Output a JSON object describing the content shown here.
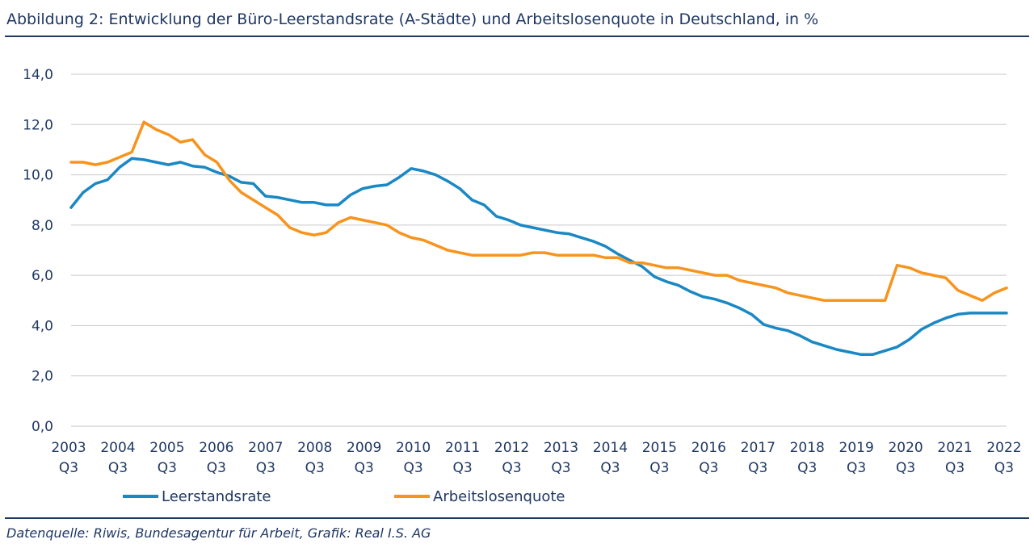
{
  "header": {
    "title": "Abbildung 2: Entwicklung der Büro-Leerstandsrate (A-Städte) und Arbeitslosenquote in Deutschland, in %"
  },
  "footer": {
    "source": "Datenquelle: Riwis, Bundesagentur für Arbeit, Grafik: Real I.S. AG"
  },
  "colors": {
    "leerstand": "#1a88c4",
    "arbeitslos": "#f7941d",
    "grid": "#c9c9c9",
    "text": "#1f3864"
  },
  "chart_data": {
    "type": "line",
    "title": "",
    "xlabel": "",
    "ylabel": "",
    "ylim": [
      0,
      14
    ],
    "yticks": [
      "0,0",
      "2,0",
      "4,0",
      "6,0",
      "8,0",
      "10,0",
      "12,0",
      "14,0"
    ],
    "grid": true,
    "legend_position": "bottom-left",
    "x_start": "2003 Q3",
    "x_end": "2022 Q3",
    "x_ticks": [
      {
        "year": "2003",
        "quarter": "Q3"
      },
      {
        "year": "2004",
        "quarter": "Q3"
      },
      {
        "year": "2005",
        "quarter": "Q3"
      },
      {
        "year": "2006",
        "quarter": "Q3"
      },
      {
        "year": "2007",
        "quarter": "Q3"
      },
      {
        "year": "2008",
        "quarter": "Q3"
      },
      {
        "year": "2009",
        "quarter": "Q3"
      },
      {
        "year": "2010",
        "quarter": "Q3"
      },
      {
        "year": "2011",
        "quarter": "Q3"
      },
      {
        "year": "2012",
        "quarter": "Q3"
      },
      {
        "year": "2013",
        "quarter": "Q3"
      },
      {
        "year": "2014",
        "quarter": "Q3"
      },
      {
        "year": "2015",
        "quarter": "Q3"
      },
      {
        "year": "2016",
        "quarter": "Q3"
      },
      {
        "year": "2017",
        "quarter": "Q3"
      },
      {
        "year": "2018",
        "quarter": "Q3"
      },
      {
        "year": "2019",
        "quarter": "Q3"
      },
      {
        "year": "2020",
        "quarter": "Q3"
      },
      {
        "year": "2021",
        "quarter": "Q3"
      },
      {
        "year": "2022",
        "quarter": "Q3"
      }
    ],
    "series": [
      {
        "name": "Leerstandsrate",
        "key": "leerstand",
        "values": [
          8.7,
          9.3,
          9.65,
          9.8,
          10.3,
          10.65,
          10.6,
          10.5,
          10.4,
          10.5,
          10.35,
          10.3,
          10.1,
          9.95,
          9.7,
          9.65,
          9.15,
          9.1,
          9.0,
          8.9,
          8.9,
          8.8,
          8.8,
          9.2,
          9.45,
          9.55,
          9.6,
          9.9,
          10.25,
          10.15,
          10.0,
          9.75,
          9.45,
          9.0,
          8.8,
          8.35,
          8.2,
          8.0,
          7.9,
          7.8,
          7.7,
          7.65,
          7.5,
          7.35,
          7.15,
          6.85,
          6.6,
          6.35,
          5.95,
          5.75,
          5.6,
          5.35,
          5.15,
          5.05,
          4.9,
          4.7,
          4.45,
          4.05,
          3.9,
          3.8,
          3.6,
          3.35,
          3.2,
          3.05,
          2.95,
          2.85,
          2.85,
          3.0,
          3.15,
          3.45,
          3.85,
          4.1,
          4.3,
          4.45,
          4.5,
          4.5,
          4.5,
          4.5
        ]
      },
      {
        "name": "Arbeitslosenquote",
        "key": "arbeitslos",
        "values": [
          10.5,
          10.5,
          10.4,
          10.5,
          10.7,
          10.9,
          12.1,
          11.8,
          11.6,
          11.3,
          11.4,
          10.8,
          10.5,
          9.8,
          9.3,
          9.0,
          8.7,
          8.4,
          7.9,
          7.7,
          7.6,
          7.7,
          8.1,
          8.3,
          8.2,
          8.1,
          8.0,
          7.7,
          7.5,
          7.4,
          7.2,
          7.0,
          6.9,
          6.8,
          6.8,
          6.8,
          6.8,
          6.8,
          6.9,
          6.9,
          6.8,
          6.8,
          6.8,
          6.8,
          6.7,
          6.7,
          6.5,
          6.5,
          6.4,
          6.3,
          6.3,
          6.2,
          6.1,
          6.0,
          6.0,
          5.8,
          5.7,
          5.6,
          5.5,
          5.3,
          5.2,
          5.1,
          5.0,
          5.0,
          5.0,
          5.0,
          5.0,
          5.0,
          6.4,
          6.3,
          6.1,
          6.0,
          5.9,
          5.4,
          5.2,
          5.0,
          5.3,
          5.5
        ]
      }
    ]
  }
}
